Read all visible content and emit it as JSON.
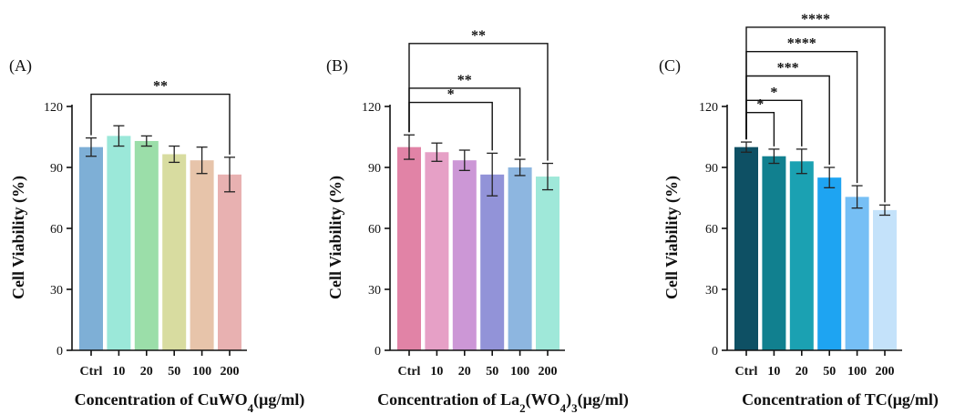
{
  "chart_data": [
    {
      "type": "bar",
      "panel_label": "(A)",
      "title": "",
      "ylabel": "Cell Viability (%)",
      "xlabel_parts": [
        {
          "text": "Concentration of CuWO",
          "sub": false
        },
        {
          "text": "4",
          "sub": true
        },
        {
          "text": "(μg/ml)",
          "sub": false
        }
      ],
      "categories": [
        "Ctrl",
        "10",
        "20",
        "50",
        "100",
        "200"
      ],
      "values": [
        100,
        105.5,
        103,
        96.5,
        93.5,
        86.5
      ],
      "errors": [
        4.5,
        5,
        2.5,
        4,
        6.5,
        8.5
      ],
      "colors": [
        "#7eafd6",
        "#9be8d9",
        "#9bdea9",
        "#d8dca0",
        "#e7c4aa",
        "#e8b1b1"
      ],
      "ylim": [
        0,
        120
      ],
      "yticks": [
        0,
        30,
        60,
        90,
        120
      ],
      "significance": [
        {
          "from": 0,
          "to": 5,
          "label": "**",
          "level": 126
        }
      ]
    },
    {
      "type": "bar",
      "panel_label": "(B)",
      "title": "",
      "ylabel": "Cell Viability (%)",
      "xlabel_parts": [
        {
          "text": "Concentration of La",
          "sub": false
        },
        {
          "text": "2",
          "sub": true
        },
        {
          "text": "(WO",
          "sub": false
        },
        {
          "text": "4",
          "sub": true
        },
        {
          "text": ")",
          "sub": false
        },
        {
          "text": "3",
          "sub": true
        },
        {
          "text": "(μg/ml)",
          "sub": false
        }
      ],
      "categories": [
        "Ctrl",
        "10",
        "20",
        "50",
        "100",
        "200"
      ],
      "values": [
        100,
        97.5,
        93.5,
        86.5,
        90,
        85.5
      ],
      "errors": [
        6,
        4.5,
        5,
        10.5,
        4,
        6.5
      ],
      "colors": [
        "#e183a6",
        "#e6a0c6",
        "#cc97d6",
        "#9293d8",
        "#8db6e0",
        "#9fe8d9"
      ],
      "ylim": [
        0,
        120
      ],
      "yticks": [
        0,
        30,
        60,
        90,
        120
      ],
      "significance": [
        {
          "from": 0,
          "to": 3,
          "label": "*",
          "level": 122
        },
        {
          "from": 0,
          "to": 4,
          "label": "**",
          "level": 129
        },
        {
          "from": 0,
          "to": 5,
          "label": "**",
          "level": 151
        }
      ]
    },
    {
      "type": "bar",
      "panel_label": "(C)",
      "title": "",
      "ylabel": "Cell Viability (%)",
      "xlabel_parts": [
        {
          "text": "Concentration of TC(μg/ml)",
          "sub": false
        }
      ],
      "categories": [
        "Ctrl",
        "10",
        "20",
        "50",
        "100",
        "200"
      ],
      "values": [
        100,
        95.5,
        93,
        85,
        75.5,
        69
      ],
      "errors": [
        2.5,
        3.5,
        6,
        5,
        5.5,
        2.5
      ],
      "colors": [
        "#0e5064",
        "#11808f",
        "#1ba1b2",
        "#1ea4f2",
        "#76bff5",
        "#c4e2fa"
      ],
      "ylim": [
        0,
        120
      ],
      "yticks": [
        0,
        30,
        60,
        90,
        120
      ],
      "significance": [
        {
          "from": 0,
          "to": 1,
          "label": "*",
          "level": 117
        },
        {
          "from": 0,
          "to": 2,
          "label": "*",
          "level": 123
        },
        {
          "from": 0,
          "to": 3,
          "label": "***",
          "level": 135
        },
        {
          "from": 0,
          "to": 4,
          "label": "****",
          "level": 147
        },
        {
          "from": 0,
          "to": 5,
          "label": "****",
          "level": 159
        }
      ]
    }
  ]
}
